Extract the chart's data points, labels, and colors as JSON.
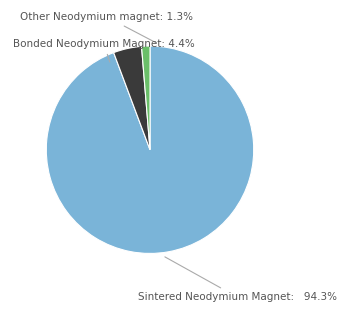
{
  "labels": [
    "Sintered Neodymium Magnet",
    "Bonded Neodymium Magnet",
    "Other Neodymium magnet"
  ],
  "values": [
    94.3,
    4.4,
    1.3
  ],
  "colors": [
    "#7ab4d8",
    "#3a3a3a",
    "#6abf69"
  ],
  "background_color": "#ffffff",
  "startangle": 90,
  "label_sintered": "Sintered Neodymium Magnet:   94.3%",
  "label_bonded": "Bonded Neodymium Magnet: 4.4%",
  "label_other": "Other Neodymium magnet: 1.3%",
  "label_fontsize": 7.5,
  "label_color": "#555555"
}
